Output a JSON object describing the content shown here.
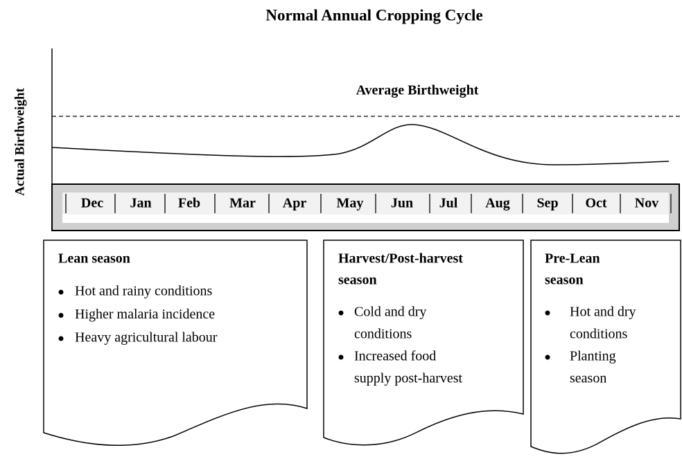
{
  "title": "Normal Annual Cropping Cycle",
  "y_axis_label": "Actual Birthweight",
  "average_label": "Average Birthweight",
  "months": [
    "Dec",
    "Jan",
    "Feb",
    "Mar",
    "Apr",
    "May",
    "Jun",
    "Jul",
    "Aug",
    "Sep",
    "Oct",
    "Nov"
  ],
  "boxes": [
    {
      "title_lines": [
        "Lean season"
      ],
      "bullets": [
        [
          "Hot and rainy conditions"
        ],
        [
          "Higher malaria incidence"
        ],
        [
          "Heavy agricultural labour"
        ]
      ]
    },
    {
      "title_lines": [
        "Harvest/Post-harvest",
        "season"
      ],
      "bullets": [
        [
          "Cold and dry",
          "conditions"
        ],
        [
          "Increased food",
          "supply post-harvest"
        ]
      ]
    },
    {
      "title_lines": [
        "Pre-Lean",
        "season"
      ],
      "bullets": [
        [
          "Hot and dry",
          "conditions"
        ],
        [
          "Planting",
          "season"
        ]
      ]
    }
  ]
}
